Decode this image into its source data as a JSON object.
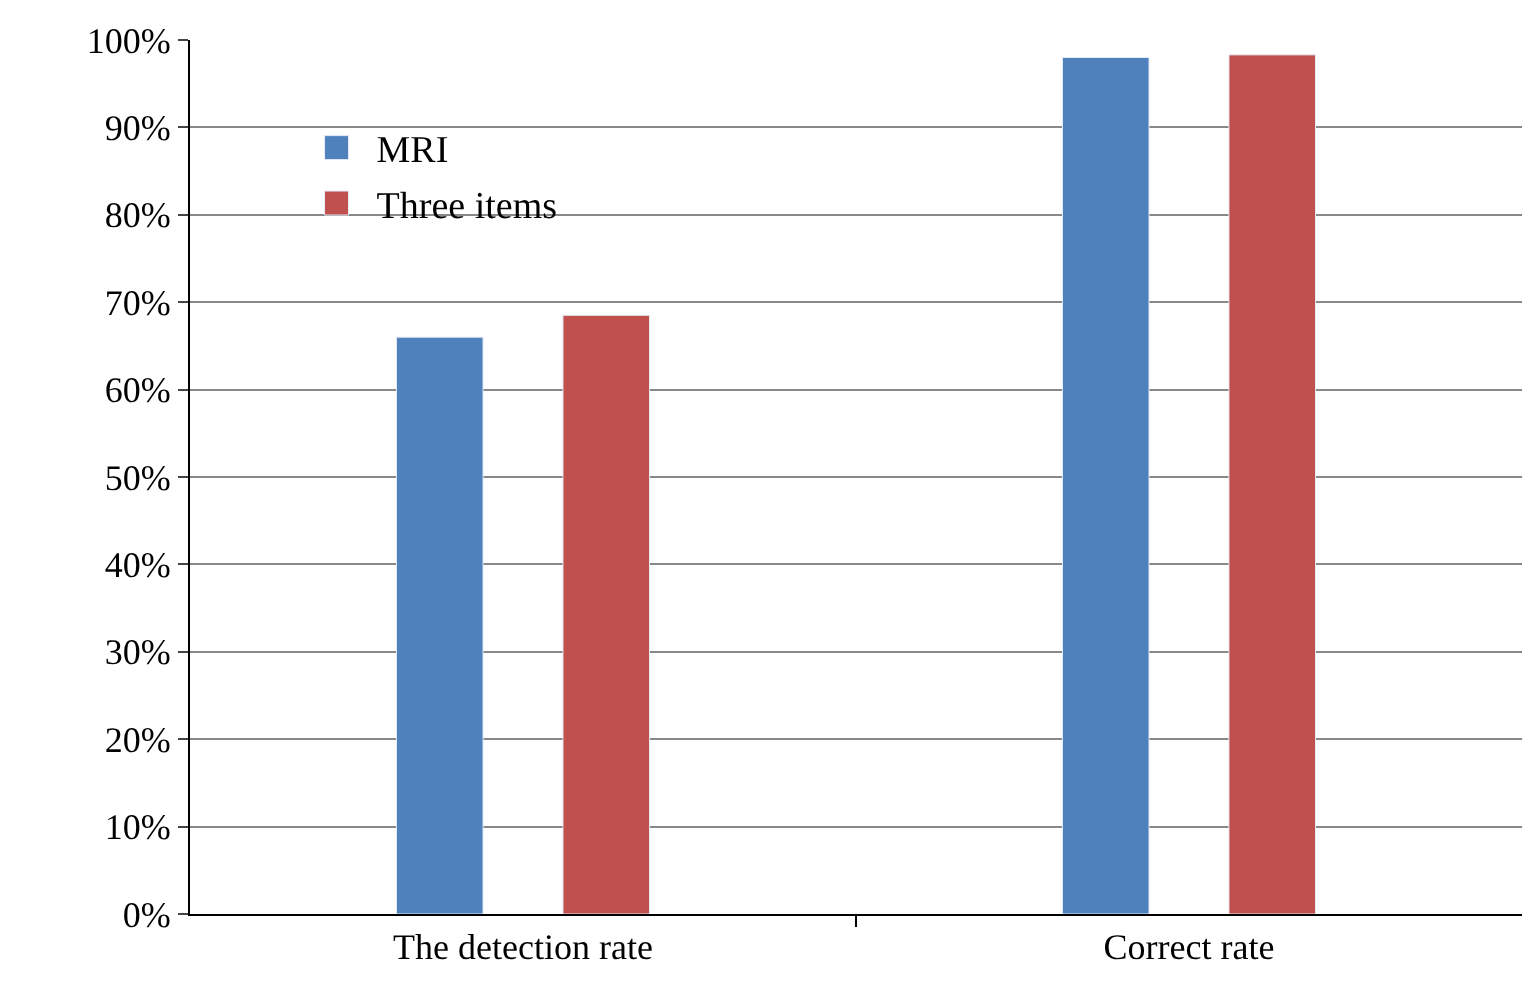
{
  "chart_data": {
    "type": "bar",
    "categories": [
      "The detection rate",
      "Correct rate"
    ],
    "series": [
      {
        "name": "MRI",
        "color": "#4f81bd",
        "values": [
          66,
          98
        ]
      },
      {
        "name": "Three items",
        "color": "#c0504d",
        "values": [
          68.5,
          98.3
        ]
      }
    ],
    "ylim": [
      0,
      100
    ],
    "yticks": [
      {
        "value": 0,
        "label": "0%"
      },
      {
        "value": 10,
        "label": "10%"
      },
      {
        "value": 20,
        "label": "20%"
      },
      {
        "value": 30,
        "label": "30%"
      },
      {
        "value": 40,
        "label": "40%"
      },
      {
        "value": 50,
        "label": "50%"
      },
      {
        "value": 60,
        "label": "60%"
      },
      {
        "value": 70,
        "label": "70%"
      },
      {
        "value": 80,
        "label": "80%"
      },
      {
        "value": 90,
        "label": "90%"
      },
      {
        "value": 100,
        "label": "100%"
      }
    ],
    "grid": "y",
    "legend": "top left"
  }
}
